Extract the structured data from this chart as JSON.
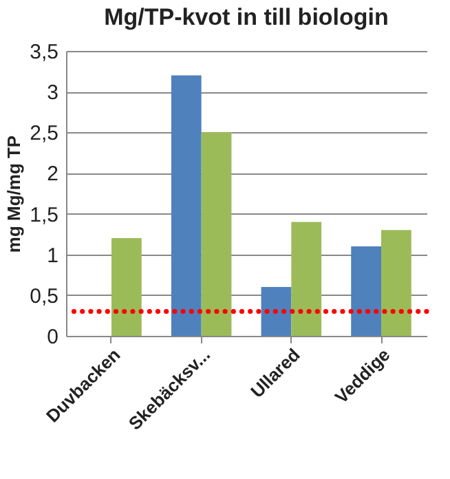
{
  "chart_data": {
    "type": "bar",
    "title": "Mg/TP-kvot in till biologin",
    "ylabel": "mg Mg/mg TP",
    "categories": [
      "Duvbacken",
      "Skebäcksv...",
      "Ullared",
      "Veddige"
    ],
    "series": [
      {
        "color": "#4f81bd",
        "values": [
          null,
          3.2,
          0.6,
          1.1
        ]
      },
      {
        "color": "#9bbb59",
        "values": [
          1.2,
          2.5,
          1.4,
          1.3
        ]
      }
    ],
    "ylim": [
      0,
      3.5
    ],
    "yticks": [
      0,
      {
        "value": 0.5,
        "label": "0,5"
      },
      1,
      {
        "value": 1.5,
        "label": "1,5"
      },
      2,
      {
        "value": 2.5,
        "label": "2,5"
      },
      3,
      {
        "value": 3.5,
        "label": "3,5"
      }
    ],
    "grid": "y",
    "legend": false,
    "ref_lines": [
      {
        "axis": "y",
        "value": 0.3,
        "color": "#ff0000",
        "line_style": "dotted"
      }
    ]
  }
}
